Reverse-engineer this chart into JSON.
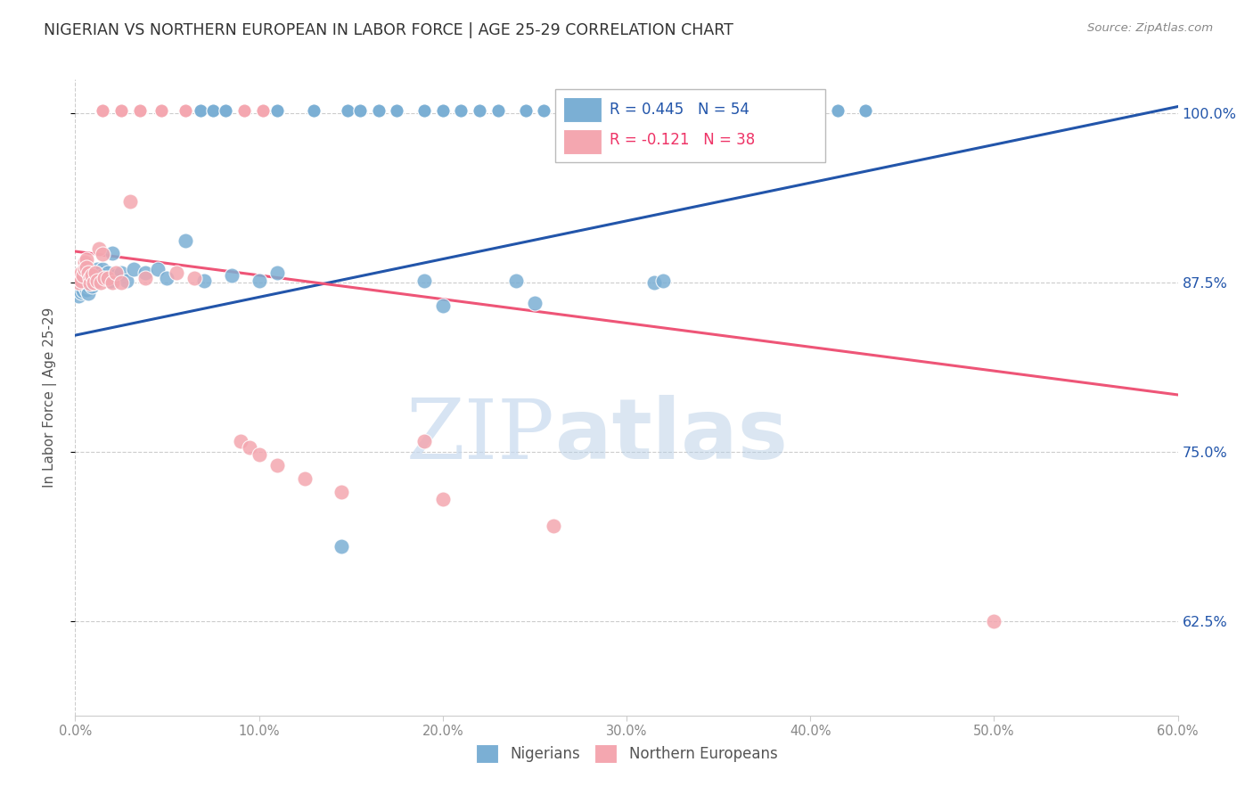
{
  "title": "NIGERIAN VS NORTHERN EUROPEAN IN LABOR FORCE | AGE 25-29 CORRELATION CHART",
  "source": "Source: ZipAtlas.com",
  "ylabel": "In Labor Force | Age 25-29",
  "ytick_labels": [
    "100.0%",
    "87.5%",
    "75.0%",
    "62.5%"
  ],
  "ytick_values": [
    1.0,
    0.875,
    0.75,
    0.625
  ],
  "xlim": [
    0.0,
    0.6
  ],
  "ylim": [
    0.555,
    1.025
  ],
  "legend_blue": "R = 0.445   N = 54",
  "legend_pink": "R = -0.121   N = 38",
  "blue_line_x0": 0.0,
  "blue_line_y0": 0.836,
  "blue_line_x1": 0.6,
  "blue_line_y1": 1.005,
  "pink_line_x0": 0.0,
  "pink_line_y0": 0.898,
  "pink_line_x1": 0.6,
  "pink_line_y1": 0.792,
  "nigerians_x": [
    0.001,
    0.002,
    0.002,
    0.003,
    0.003,
    0.003,
    0.004,
    0.004,
    0.004,
    0.005,
    0.005,
    0.006,
    0.006,
    0.006,
    0.007,
    0.007,
    0.007,
    0.007,
    0.008,
    0.008,
    0.009,
    0.009,
    0.01,
    0.01,
    0.011,
    0.011,
    0.012,
    0.013,
    0.014,
    0.015,
    0.015,
    0.016,
    0.018,
    0.019,
    0.02,
    0.022,
    0.025,
    0.028,
    0.032,
    0.038,
    0.045,
    0.05,
    0.06,
    0.07,
    0.085,
    0.1,
    0.11,
    0.145,
    0.19,
    0.2,
    0.24,
    0.25,
    0.315,
    0.32
  ],
  "nigerians_y": [
    0.876,
    0.87,
    0.865,
    0.875,
    0.872,
    0.868,
    0.88,
    0.874,
    0.869,
    0.878,
    0.872,
    0.88,
    0.875,
    0.87,
    0.882,
    0.877,
    0.872,
    0.867,
    0.88,
    0.875,
    0.877,
    0.872,
    0.88,
    0.875,
    0.882,
    0.876,
    0.885,
    0.878,
    0.882,
    0.885,
    0.88,
    0.878,
    0.882,
    0.876,
    0.897,
    0.88,
    0.882,
    0.876,
    0.885,
    0.882,
    0.885,
    0.878,
    0.906,
    0.876,
    0.88,
    0.876,
    0.882,
    0.68,
    0.876,
    0.858,
    0.876,
    0.86,
    0.875,
    0.876
  ],
  "northern_europeans_x": [
    0.001,
    0.002,
    0.003,
    0.003,
    0.004,
    0.005,
    0.005,
    0.006,
    0.006,
    0.007,
    0.008,
    0.008,
    0.009,
    0.01,
    0.011,
    0.012,
    0.013,
    0.014,
    0.015,
    0.016,
    0.018,
    0.02,
    0.022,
    0.025,
    0.03,
    0.038,
    0.055,
    0.065,
    0.09,
    0.095,
    0.1,
    0.11,
    0.125,
    0.145,
    0.19,
    0.2,
    0.26,
    0.5
  ],
  "northern_europeans_y": [
    0.878,
    0.875,
    0.882,
    0.876,
    0.88,
    0.89,
    0.885,
    0.892,
    0.886,
    0.882,
    0.878,
    0.874,
    0.88,
    0.875,
    0.882,
    0.876,
    0.9,
    0.875,
    0.896,
    0.878,
    0.878,
    0.875,
    0.882,
    0.875,
    0.935,
    0.878,
    0.882,
    0.878,
    0.758,
    0.753,
    0.748,
    0.74,
    0.73,
    0.72,
    0.758,
    0.715,
    0.695,
    0.625
  ],
  "top_row_blue_x": [
    0.068,
    0.075,
    0.082,
    0.11,
    0.13,
    0.148,
    0.155,
    0.165,
    0.175,
    0.19,
    0.2,
    0.21,
    0.22,
    0.23,
    0.245,
    0.255,
    0.27,
    0.285,
    0.295,
    0.31,
    0.33,
    0.345,
    0.36,
    0.375,
    0.385,
    0.4,
    0.415,
    0.43
  ],
  "top_row_pink_x": [
    0.015,
    0.025,
    0.035,
    0.047,
    0.06,
    0.092,
    0.102
  ],
  "color_blue": "#7BAFD4",
  "color_pink": "#F4A7B0",
  "color_blue_line": "#2255AA",
  "color_pink_line": "#EE5577",
  "color_blue_text": "#2255AA",
  "color_pink_text": "#EE3366",
  "background_color": "#ffffff",
  "grid_color": "#cccccc",
  "watermark_zip": "ZIP",
  "watermark_atlas": "atlas"
}
